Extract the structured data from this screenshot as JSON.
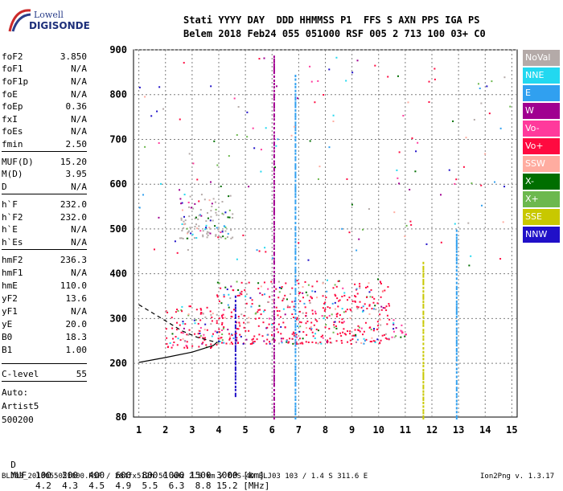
{
  "logo": {
    "line1": "Lowell",
    "line2": "DIGISONDE"
  },
  "header": {
    "labels": "Stati YYYY DAY  DDD HHMMSS P1  FFS S AXN PPS IGA PS",
    "values": "Belem 2018 Feb24 055 051000 RSF 005 2 713 100 03+ C0"
  },
  "scaled_params": [
    {
      "key": "foF2",
      "value": "3.850"
    },
    {
      "key": "foF1",
      "value": "N/A"
    },
    {
      "key": "foF1p",
      "value": "N/A"
    },
    {
      "key": "foE",
      "value": "N/A"
    },
    {
      "key": "foEp",
      "value": "0.36"
    },
    {
      "key": "fxI",
      "value": "N/A"
    },
    {
      "key": "foEs",
      "value": "N/A"
    },
    {
      "key": "fmin",
      "value": "2.50"
    },
    {
      "key": "MUF(D)",
      "value": "15.20"
    },
    {
      "key": "M(D)",
      "value": "3.95"
    },
    {
      "key": "D",
      "value": "N/A"
    },
    {
      "key": "h`F",
      "value": "232.0"
    },
    {
      "key": "h`F2",
      "value": "232.0"
    },
    {
      "key": "h`E",
      "value": "N/A"
    },
    {
      "key": "h`Es",
      "value": "N/A"
    },
    {
      "key": "hmF2",
      "value": "236.3"
    },
    {
      "key": "hmF1",
      "value": "N/A"
    },
    {
      "key": "hmE",
      "value": "110.0"
    },
    {
      "key": "yF2",
      "value": "13.6"
    },
    {
      "key": "yF1",
      "value": "N/A"
    },
    {
      "key": "yE",
      "value": "20.0"
    },
    {
      "key": "B0",
      "value": "18.3"
    },
    {
      "key": "B1",
      "value": "1.00"
    },
    {
      "key": "C-level",
      "value": "55"
    }
  ],
  "auto": {
    "label": "Auto:",
    "artist": "Artist5",
    "version": "500200"
  },
  "muf_table": {
    "d_label": "D",
    "d_values": "100  200  400  600  800 1000 1500 3000 [km]",
    "muf_label": "MUF",
    "muf_values": "4.2  4.3  4.5  4.9  5.5  6.3  8.8 15.2 [MHz]"
  },
  "footer": {
    "file_info": "BLJ03_2018055051000.RSF / 284fx512h 50 kHz 2.5 km / DPS-4D BLJ03 103 / 1.4 S 311.6 E",
    "version": "Ion2Png v. 1.3.17"
  },
  "legend": [
    {
      "label": "NoVal",
      "color": "#b4aaa8"
    },
    {
      "label": "NNE",
      "color": "#22d8f0"
    },
    {
      "label": "E",
      "color": "#30a0f0"
    },
    {
      "label": "W",
      "color": "#a00090"
    },
    {
      "label": "Vo-",
      "color": "#ff3a9c"
    },
    {
      "label": "Vo+",
      "color": "#ff0a40"
    },
    {
      "label": "SSW",
      "color": "#ffaca0"
    },
    {
      "label": "X-",
      "color": "#006e00"
    },
    {
      "label": "X+",
      "color": "#6cb84e"
    },
    {
      "label": "SSE",
      "color": "#c8c800"
    },
    {
      "label": "NNW",
      "color": "#2010c8"
    }
  ],
  "chart_data": {
    "type": "scatter",
    "xlim": [
      0.8,
      15.2
    ],
    "ylim": [
      80,
      900
    ],
    "x_ticks": [
      "1",
      "2",
      "3",
      "4",
      "5",
      "6",
      "7",
      "8",
      "9",
      "10",
      "11",
      "12",
      "13",
      "14",
      "15"
    ],
    "y_ticks": [
      "80",
      "200",
      "300",
      "400",
      "500",
      "600",
      "700",
      "800",
      "900"
    ],
    "y_tick_values": [
      80,
      200,
      300,
      400,
      500,
      600,
      700,
      800,
      900
    ],
    "grid": true,
    "trace_bands": [
      {
        "fmin": 2.0,
        "fmax": 3.9,
        "hmin": 235,
        "hmax": 330,
        "color": "Vo+"
      },
      {
        "fmin": 3.9,
        "fmax": 10.4,
        "hmin": 245,
        "hmax": 390,
        "color": "Vo+"
      },
      {
        "fmin": 10.4,
        "fmax": 11.2,
        "hmin": 260,
        "hmax": 300,
        "color": "Vo-"
      },
      {
        "fmin": 2.5,
        "fmax": 4.5,
        "hmin": 480,
        "hmax": 580,
        "color": "NoVal"
      }
    ],
    "vertical_traces": [
      {
        "f": 4.6,
        "hmin": 130,
        "hmax": 360,
        "color": "NNW"
      },
      {
        "f": 6.05,
        "hmin": 80,
        "hmax": 890,
        "color": "W"
      },
      {
        "f": 6.85,
        "hmin": 80,
        "hmax": 850,
        "color": "E"
      },
      {
        "f": 11.65,
        "hmin": 80,
        "hmax": 430,
        "color": "SSE"
      },
      {
        "f": 12.9,
        "hmin": 80,
        "hmax": 500,
        "color": "E"
      }
    ],
    "model_curves": {
      "solid": [
        [
          1.0,
          202
        ],
        [
          2.0,
          213
        ],
        [
          3.0,
          225
        ],
        [
          3.8,
          240
        ],
        [
          3.95,
          248
        ]
      ],
      "dashed": [
        [
          1.0,
          331
        ],
        [
          2.0,
          295
        ],
        [
          2.6,
          273
        ],
        [
          3.2,
          258
        ],
        [
          3.85,
          248
        ]
      ]
    }
  }
}
